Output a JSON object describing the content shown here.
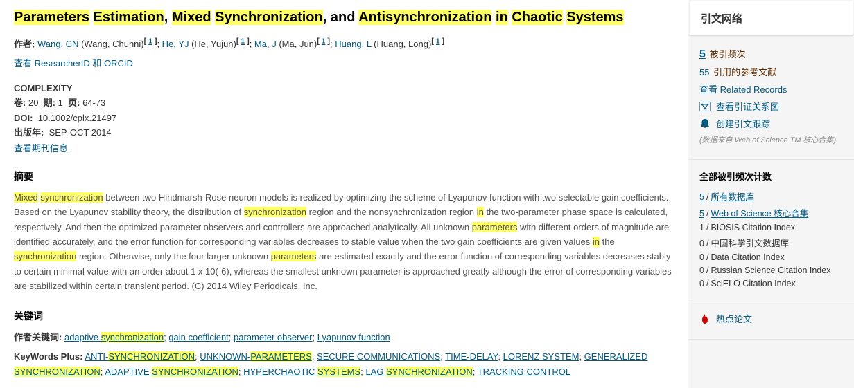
{
  "colors": {
    "highlight": "#ffff66",
    "link": "#005a84",
    "accent_red": "#c00",
    "text": "#333",
    "muted": "#888",
    "bg_sidebar": "#f5f5f5"
  },
  "title": {
    "segments": [
      {
        "t": "Parameters",
        "hl": true
      },
      {
        "t": " "
      },
      {
        "t": "Estimation",
        "hl": true
      },
      {
        "t": ", "
      },
      {
        "t": "Mixed",
        "hl": true
      },
      {
        "t": " "
      },
      {
        "t": "Synchronization",
        "hl": true
      },
      {
        "t": ", and "
      },
      {
        "t": "Antisynchronization",
        "hl": true
      },
      {
        "t": " "
      },
      {
        "t": "in",
        "hl": true
      },
      {
        "t": " "
      },
      {
        "t": "Chaotic",
        "hl": true
      },
      {
        "t": " "
      },
      {
        "t": "Systems",
        "hl": true
      }
    ]
  },
  "authors": {
    "label": "作者:",
    "list": [
      {
        "link": "Wang, CN",
        "paren": "(Wang, Chunni)",
        "sup": "1"
      },
      {
        "link": "He, YJ",
        "paren": "(He, Yujun)",
        "sup": "1"
      },
      {
        "link": "Ma, J",
        "paren": "(Ma, Jun)",
        "sup": "1"
      },
      {
        "link": "Huang, L",
        "paren": "(Huang, Long)",
        "sup": "1"
      }
    ]
  },
  "researcherid_link": "查看 ResearcherID 和 ORCID",
  "journal": "COMPLEXITY",
  "vol_line": {
    "vol_label": "卷:",
    "vol": "20",
    "issue_label": "期:",
    "issue": "1",
    "pages_label": "页:",
    "pages": "64-73"
  },
  "doi": {
    "label": "DOI:",
    "value": "10.1002/cplx.21497"
  },
  "pub": {
    "label": "出版年:",
    "value": "SEP-OCT 2014"
  },
  "journal_info_link": "查看期刊信息",
  "abstract": {
    "heading": "摘要",
    "segments": [
      {
        "t": "Mixed",
        "hl": true
      },
      {
        "t": " "
      },
      {
        "t": "synchronization",
        "hl": true
      },
      {
        "t": " between two Hindmarsh-Rose neuron models is realized by optimizing the scheme of Lyapunov function with two selectable gain coefficients. Based on the Lyapunov stability theory, the distribution of "
      },
      {
        "t": "synchronization",
        "hl": true
      },
      {
        "t": " region and the nonsynchronization region "
      },
      {
        "t": "in",
        "hl": true
      },
      {
        "t": " the two-parameter phase space is calculated, respectively. And then the optimized parameter observers and controllers are approached analytically. All unknown "
      },
      {
        "t": "parameters",
        "hl": true
      },
      {
        "t": " with different orders of magnitude are identified accurately, and the error function for corresponding variables decreases to stable value when the two gain coefficients are given values "
      },
      {
        "t": "in",
        "hl": true
      },
      {
        "t": " the "
      },
      {
        "t": "synchronization",
        "hl": true
      },
      {
        "t": " region. Otherwise, only the four larger unknown "
      },
      {
        "t": "parameters",
        "hl": true
      },
      {
        "t": " are estimated exactly and the error function of corresponding variables decreases stably to certain minimal value with an order about 1 x 10(-6), whereas the smallest unknown parameter is approached greatly although the error of corresponding variables are stabilized within certain transient period. (C) 2014 Wiley Periodicals, Inc."
      }
    ]
  },
  "keywords": {
    "heading": "关键词",
    "author_label": "作者关键词:",
    "author_kw": [
      [
        {
          "t": "adaptive "
        },
        {
          "t": "synchronization",
          "hl": true
        }
      ],
      [
        {
          "t": "gain coefficient"
        }
      ],
      [
        {
          "t": "parameter observer"
        }
      ],
      [
        {
          "t": "Lyapunov function"
        }
      ]
    ],
    "plus_label": "KeyWords Plus:",
    "plus_kw": [
      [
        {
          "t": "ANTI-"
        },
        {
          "t": "SYNCHRONIZATION",
          "hl": true
        }
      ],
      [
        {
          "t": "UNKNOWN-"
        },
        {
          "t": "PARAMETERS",
          "hl": true
        }
      ],
      [
        {
          "t": "SECURE COMMUNICATIONS"
        }
      ],
      [
        {
          "t": "TIME-DELAY"
        }
      ],
      [
        {
          "t": "LORENZ SYSTEM"
        }
      ],
      [
        {
          "t": "GENERALIZED "
        },
        {
          "t": "SYNCHRONIZATION",
          "hl": true
        }
      ],
      [
        {
          "t": "ADAPTIVE "
        },
        {
          "t": "SYNCHRONIZATION",
          "hl": true
        }
      ],
      [
        {
          "t": "HYPERCHAOTIC "
        },
        {
          "t": "SYSTEMS",
          "hl": true
        }
      ],
      [
        {
          "t": "LAG "
        },
        {
          "t": "SYNCHRONIZATION",
          "hl": true
        }
      ],
      [
        {
          "t": "TRACKING CONTROL"
        }
      ]
    ]
  },
  "sidebar": {
    "header": "引文网络",
    "cited_count": "5",
    "cited_label": "被引频次",
    "ref_count": "55",
    "ref_label": "引用的参考文献",
    "related": "查看 Related Records",
    "citation_map": "查看引证关系图",
    "create_alert": "创建引文跟踪",
    "source_note": "(数据来自 Web of Science TM 核心合集)",
    "totals_heading": "全部被引频次计数",
    "db_rows": [
      {
        "n": "5",
        "label": "所有数据库",
        "link": true
      },
      {
        "n": "5",
        "label": "Web of Science 核心合集",
        "link": true
      },
      {
        "n": "1",
        "label": "BIOSIS Citation Index",
        "link": false
      },
      {
        "n": "0",
        "label": "中国科学引文数据库",
        "link": false
      },
      {
        "n": "0",
        "label": "Data Citation Index",
        "link": false
      },
      {
        "n": "0",
        "label": "Russian Science Citation Index",
        "link": false
      },
      {
        "n": "0",
        "label": "SciELO Citation Index",
        "link": false
      }
    ],
    "hot": "热点论文"
  }
}
